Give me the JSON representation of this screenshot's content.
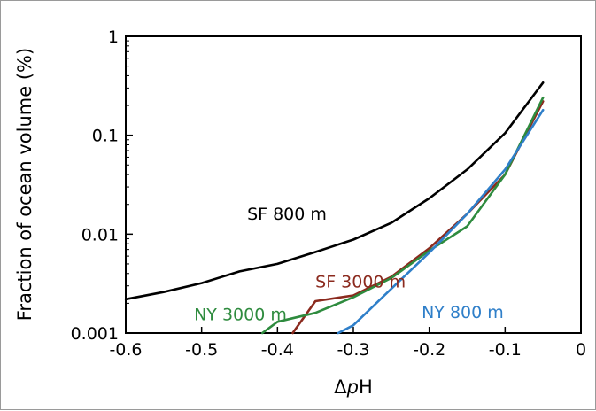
{
  "chart_data": {
    "type": "line",
    "title": "",
    "xlabel_prefix": "Δ",
    "xlabel_italic": "p",
    "xlabel_suffix": "H",
    "ylabel": "Fraction of ocean volume (%)",
    "xlim": [
      -0.6,
      0
    ],
    "ylim": [
      0.001,
      1
    ],
    "yscale": "log",
    "grid": false,
    "x_ticks": [
      "-0.6",
      "-0.5",
      "-0.4",
      "-0.3",
      "-0.2",
      "-0.1",
      "0"
    ],
    "y_ticks": [
      "0.001",
      "0.01",
      "0.1",
      "1"
    ],
    "series": [
      {
        "name": "SF 800 m",
        "color": "#000000",
        "x": [
          -0.6,
          -0.55,
          -0.5,
          -0.45,
          -0.4,
          -0.35,
          -0.3,
          -0.25,
          -0.2,
          -0.15,
          -0.1,
          -0.05
        ],
        "y": [
          0.0022,
          0.0026,
          0.0032,
          0.0042,
          0.005,
          0.0066,
          0.0088,
          0.013,
          0.023,
          0.045,
          0.105,
          0.34
        ]
      },
      {
        "name": "SF 3000 m",
        "color": "#8B2A1E",
        "x": [
          -0.38,
          -0.35,
          -0.3,
          -0.25,
          -0.2,
          -0.15,
          -0.1,
          -0.05
        ],
        "y": [
          0.001,
          0.0021,
          0.0024,
          0.0037,
          0.0072,
          0.016,
          0.04,
          0.22
        ]
      },
      {
        "name": "NY 3000 m",
        "color": "#2E8B3E",
        "x": [
          -0.42,
          -0.4,
          -0.35,
          -0.3,
          -0.25,
          -0.2,
          -0.15,
          -0.1,
          -0.05
        ],
        "y": [
          0.001,
          0.0013,
          0.0016,
          0.0023,
          0.0036,
          0.0068,
          0.012,
          0.04,
          0.24
        ]
      },
      {
        "name": "NY 800 m",
        "color": "#2F7FC9",
        "x": [
          -0.32,
          -0.3,
          -0.25,
          -0.2,
          -0.15,
          -0.1,
          -0.05
        ],
        "y": [
          0.001,
          0.0012,
          0.0028,
          0.0065,
          0.016,
          0.045,
          0.18
        ]
      }
    ],
    "annotations": [
      {
        "text": "SF 800 m",
        "series": "SF 800 m",
        "x": -0.44,
        "y": 0.014
      },
      {
        "text": "SF 3000 m",
        "series": "SF 3000 m",
        "x": -0.35,
        "y": 0.0029
      },
      {
        "text": "NY 3000 m",
        "series": "NY 3000 m",
        "x": -0.51,
        "y": 0.00135
      },
      {
        "text": "NY 800 m",
        "series": "NY 800 m",
        "x": -0.21,
        "y": 0.00142
      }
    ]
  }
}
